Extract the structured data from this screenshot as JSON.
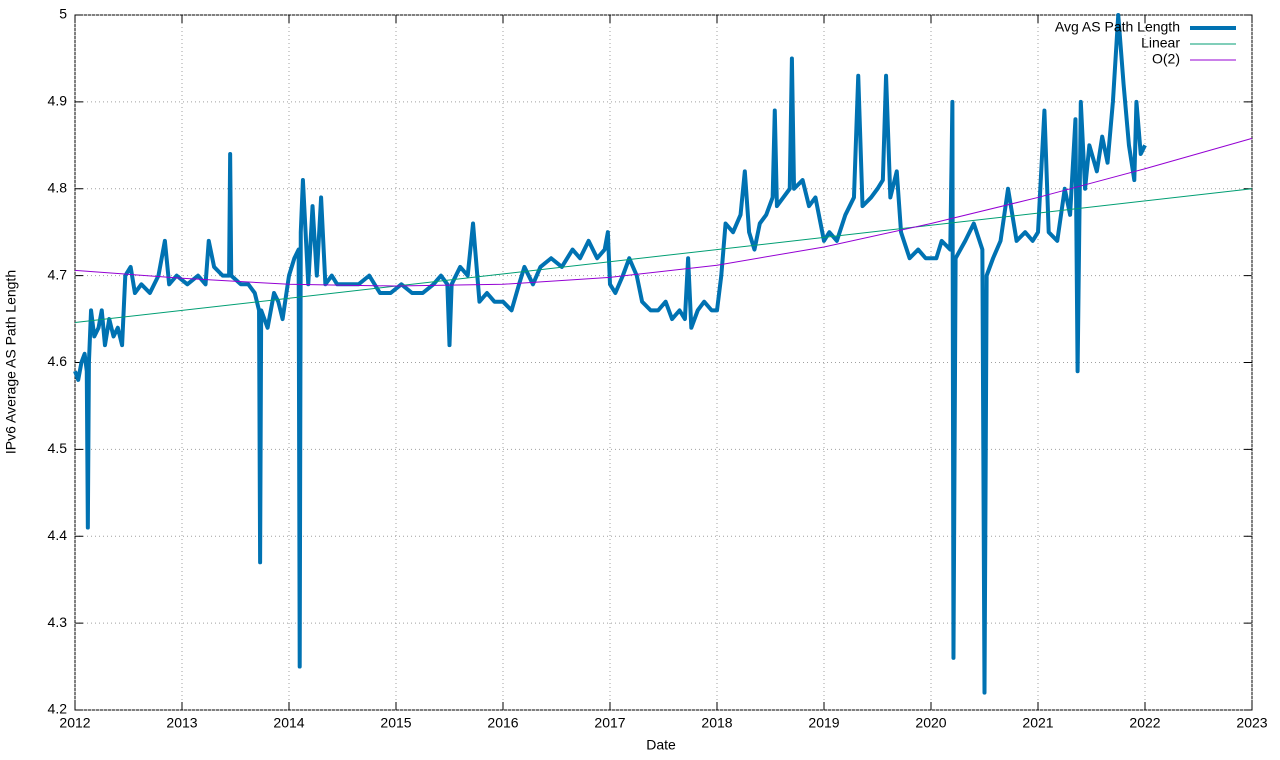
{
  "chart_data": {
    "type": "line",
    "x_label": "Date",
    "y_label": "IPv6 Average AS Path Length",
    "xlim": [
      2012,
      2023
    ],
    "xticks": [
      2012,
      2013,
      2014,
      2015,
      2016,
      2017,
      2018,
      2019,
      2020,
      2021,
      2022,
      2023
    ],
    "ylim": [
      4.2,
      5
    ],
    "yticks": [
      4.2,
      4.3,
      4.4,
      4.5,
      4.6,
      4.7,
      4.8,
      4.9,
      5
    ],
    "grid": true,
    "legend": "top-right",
    "series": [
      {
        "name": "Avg AS Path Length",
        "color": "#0072b2",
        "width": 4,
        "x": [
          2012.0,
          2012.03,
          2012.06,
          2012.09,
          2012.11,
          2012.12,
          2012.13,
          2012.15,
          2012.18,
          2012.22,
          2012.25,
          2012.28,
          2012.32,
          2012.36,
          2012.4,
          2012.44,
          2012.47,
          2012.52,
          2012.56,
          2012.62,
          2012.7,
          2012.78,
          2012.84,
          2012.88,
          2012.95,
          2013.05,
          2013.15,
          2013.22,
          2013.25,
          2013.3,
          2013.38,
          2013.44,
          2013.45,
          2013.46,
          2013.55,
          2013.62,
          2013.68,
          2013.72,
          2013.73,
          2013.74,
          2013.8,
          2013.86,
          2013.9,
          2013.94,
          2014.0,
          2014.05,
          2014.09,
          2014.1,
          2014.11,
          2014.13,
          2014.18,
          2014.22,
          2014.26,
          2014.3,
          2014.34,
          2014.4,
          2014.45,
          2014.55,
          2014.65,
          2014.75,
          2014.85,
          2014.95,
          2015.05,
          2015.15,
          2015.25,
          2015.35,
          2015.42,
          2015.48,
          2015.5,
          2015.52,
          2015.6,
          2015.67,
          2015.72,
          2015.78,
          2015.85,
          2015.92,
          2016.0,
          2016.08,
          2016.15,
          2016.2,
          2016.28,
          2016.35,
          2016.45,
          2016.55,
          2016.65,
          2016.72,
          2016.8,
          2016.88,
          2016.95,
          2016.98,
          2017.0,
          2017.05,
          2017.12,
          2017.18,
          2017.25,
          2017.3,
          2017.38,
          2017.45,
          2017.52,
          2017.58,
          2017.65,
          2017.7,
          2017.73,
          2017.76,
          2017.82,
          2017.88,
          2017.95,
          2018.0,
          2018.04,
          2018.08,
          2018.15,
          2018.22,
          2018.26,
          2018.3,
          2018.35,
          2018.4,
          2018.46,
          2018.52,
          2018.54,
          2018.56,
          2018.62,
          2018.68,
          2018.7,
          2018.72,
          2018.8,
          2018.86,
          2018.92,
          2019.0,
          2019.05,
          2019.12,
          2019.2,
          2019.28,
          2019.32,
          2019.36,
          2019.44,
          2019.5,
          2019.55,
          2019.58,
          2019.62,
          2019.68,
          2019.72,
          2019.8,
          2019.88,
          2019.95,
          2020.05,
          2020.1,
          2020.18,
          2020.2,
          2020.21,
          2020.23,
          2020.32,
          2020.4,
          2020.48,
          2020.5,
          2020.52,
          2020.58,
          2020.65,
          2020.72,
          2020.8,
          2020.88,
          2020.95,
          2021.0,
          2021.06,
          2021.1,
          2021.18,
          2021.25,
          2021.3,
          2021.35,
          2021.37,
          2021.4,
          2021.44,
          2021.48,
          2021.55,
          2021.6,
          2021.65,
          2021.7,
          2021.75,
          2021.8,
          2021.85,
          2021.9,
          2021.92,
          2021.96,
          2022.0
        ],
        "values": [
          4.59,
          4.58,
          4.6,
          4.61,
          4.59,
          4.41,
          4.6,
          4.66,
          4.63,
          4.64,
          4.66,
          4.62,
          4.65,
          4.63,
          4.64,
          4.62,
          4.7,
          4.71,
          4.68,
          4.69,
          4.68,
          4.7,
          4.74,
          4.69,
          4.7,
          4.69,
          4.7,
          4.69,
          4.74,
          4.71,
          4.7,
          4.7,
          4.84,
          4.7,
          4.69,
          4.69,
          4.68,
          4.66,
          4.37,
          4.66,
          4.64,
          4.68,
          4.67,
          4.65,
          4.7,
          4.72,
          4.73,
          4.25,
          4.75,
          4.81,
          4.69,
          4.78,
          4.7,
          4.79,
          4.69,
          4.7,
          4.69,
          4.69,
          4.69,
          4.7,
          4.68,
          4.68,
          4.69,
          4.68,
          4.68,
          4.69,
          4.7,
          4.69,
          4.62,
          4.69,
          4.71,
          4.7,
          4.76,
          4.67,
          4.68,
          4.67,
          4.67,
          4.66,
          4.69,
          4.71,
          4.69,
          4.71,
          4.72,
          4.71,
          4.73,
          4.72,
          4.74,
          4.72,
          4.73,
          4.75,
          4.69,
          4.68,
          4.7,
          4.72,
          4.7,
          4.67,
          4.66,
          4.66,
          4.67,
          4.65,
          4.66,
          4.65,
          4.72,
          4.64,
          4.66,
          4.67,
          4.66,
          4.66,
          4.7,
          4.76,
          4.75,
          4.77,
          4.82,
          4.75,
          4.73,
          4.76,
          4.77,
          4.79,
          4.89,
          4.78,
          4.79,
          4.8,
          4.95,
          4.8,
          4.81,
          4.78,
          4.79,
          4.74,
          4.75,
          4.74,
          4.77,
          4.79,
          4.93,
          4.78,
          4.79,
          4.8,
          4.81,
          4.93,
          4.79,
          4.82,
          4.75,
          4.72,
          4.73,
          4.72,
          4.72,
          4.74,
          4.73,
          4.9,
          4.26,
          4.72,
          4.74,
          4.76,
          4.73,
          4.22,
          4.7,
          4.72,
          4.74,
          4.8,
          4.74,
          4.75,
          4.74,
          4.75,
          4.89,
          4.75,
          4.74,
          4.8,
          4.77,
          4.88,
          4.59,
          4.9,
          4.8,
          4.85,
          4.82,
          4.86,
          4.83,
          4.9,
          5.0,
          4.92,
          4.85,
          4.81,
          4.9,
          4.84,
          4.85
        ]
      },
      {
        "name": "Linear",
        "color": "#009e73",
        "width": 1,
        "x": [
          2012,
          2023
        ],
        "values": [
          4.646,
          4.8
        ]
      },
      {
        "name": "O(2)",
        "color": "#9400d3",
        "width": 1,
        "x": [
          2012,
          2013,
          2014,
          2015,
          2016,
          2017,
          2018,
          2019,
          2020,
          2021,
          2022,
          2023
        ],
        "values": [
          4.706,
          4.697,
          4.69,
          4.688,
          4.69,
          4.698,
          4.712,
          4.733,
          4.76,
          4.79,
          4.823,
          4.858
        ]
      }
    ]
  }
}
